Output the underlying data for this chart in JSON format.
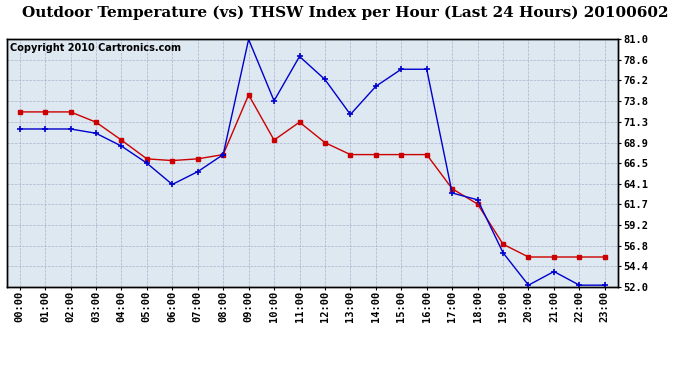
{
  "title": "Outdoor Temperature (vs) THSW Index per Hour (Last 24 Hours) 20100602",
  "copyright": "Copyright 2010 Cartronics.com",
  "hours": [
    "00:00",
    "01:00",
    "02:00",
    "03:00",
    "04:00",
    "05:00",
    "06:00",
    "07:00",
    "08:00",
    "09:00",
    "10:00",
    "11:00",
    "12:00",
    "13:00",
    "14:00",
    "15:00",
    "16:00",
    "17:00",
    "18:00",
    "19:00",
    "20:00",
    "21:00",
    "22:00",
    "23:00"
  ],
  "temp": [
    72.5,
    72.5,
    72.5,
    71.3,
    69.2,
    67.0,
    66.8,
    67.0,
    67.5,
    74.5,
    69.2,
    71.3,
    68.9,
    67.5,
    67.5,
    67.5,
    67.5,
    63.5,
    61.7,
    57.0,
    55.5,
    55.5,
    55.5,
    55.5
  ],
  "thsw": [
    70.5,
    70.5,
    70.5,
    70.0,
    68.5,
    66.5,
    64.0,
    65.5,
    67.5,
    81.0,
    73.8,
    79.0,
    76.3,
    72.2,
    75.5,
    77.5,
    77.5,
    63.0,
    62.2,
    56.0,
    52.2,
    53.8,
    52.2,
    52.2
  ],
  "temp_color": "#cc0000",
  "thsw_color": "#0000cc",
  "ylim_min": 52.0,
  "ylim_max": 81.0,
  "yticks": [
    52.0,
    54.4,
    56.8,
    59.2,
    61.7,
    64.1,
    66.5,
    68.9,
    71.3,
    73.8,
    76.2,
    78.6,
    81.0
  ],
  "bg_color": "#ffffff",
  "plot_bg": "#dde8f0",
  "grid_color": "#aaaacc",
  "title_fontsize": 11,
  "copyright_fontsize": 7,
  "tick_fontsize": 7.5,
  "marker_size": 3
}
